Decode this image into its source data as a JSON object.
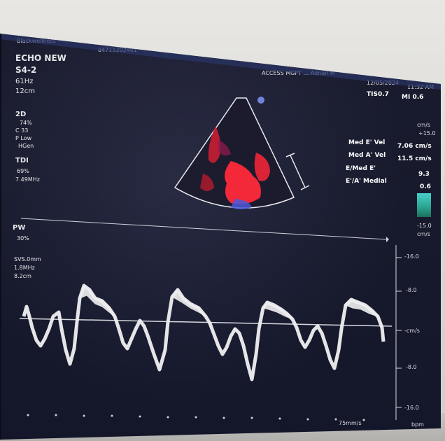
{
  "header": {
    "left_label": "Blackwellness",
    "center_label": "04711202401",
    "right_label": "ACCESS MGPT ... Adnan M",
    "date": "12/05/2024",
    "time": "11:32 AM"
  },
  "preset": {
    "title": "ECHO NEW",
    "probe": "S4-2",
    "frame_rate": "61Hz",
    "depth": "12cm"
  },
  "two_d": {
    "label": "2D",
    "gain": "74%",
    "c_value": "C 33",
    "persist": "P Low",
    "mode": "HGen"
  },
  "tdi": {
    "label": "TDI",
    "gain": "69%",
    "freq": "7.49MHz"
  },
  "pw": {
    "label": "PW",
    "gain": "30%",
    "sv": "SVS.0mm",
    "freq": "1.8MHz",
    "depth": "8.2cm"
  },
  "indices": {
    "ti": "TIS0.7",
    "mi": "MI 0.6"
  },
  "measurements": {
    "units_top": "cm/s",
    "scale_top": "+15.0",
    "rows": [
      {
        "label": "Med E' Vel",
        "value": "7.06 cm/s"
      },
      {
        "label": "Med A' Vel",
        "value": "11.5 cm/s"
      },
      {
        "label": "E/Med E'",
        "value": "9.3"
      },
      {
        "label": "E'/A' Medial",
        "value": "0.6"
      }
    ],
    "scale_bottom": "-15.0",
    "units_bottom": "cm/s"
  },
  "doppler_scale": {
    "ticks": [
      "-16.0",
      "-8.0",
      "-cm/s",
      "-8.0",
      "-16.0"
    ]
  },
  "footer": {
    "sweep": "75mm/s",
    "bpm": "bpm"
  },
  "colors": {
    "screen_bg": "#171a2c",
    "color_flow": "#ff2a3a",
    "trace": "#f0f0f2",
    "baseline": "#d8d8e0"
  }
}
